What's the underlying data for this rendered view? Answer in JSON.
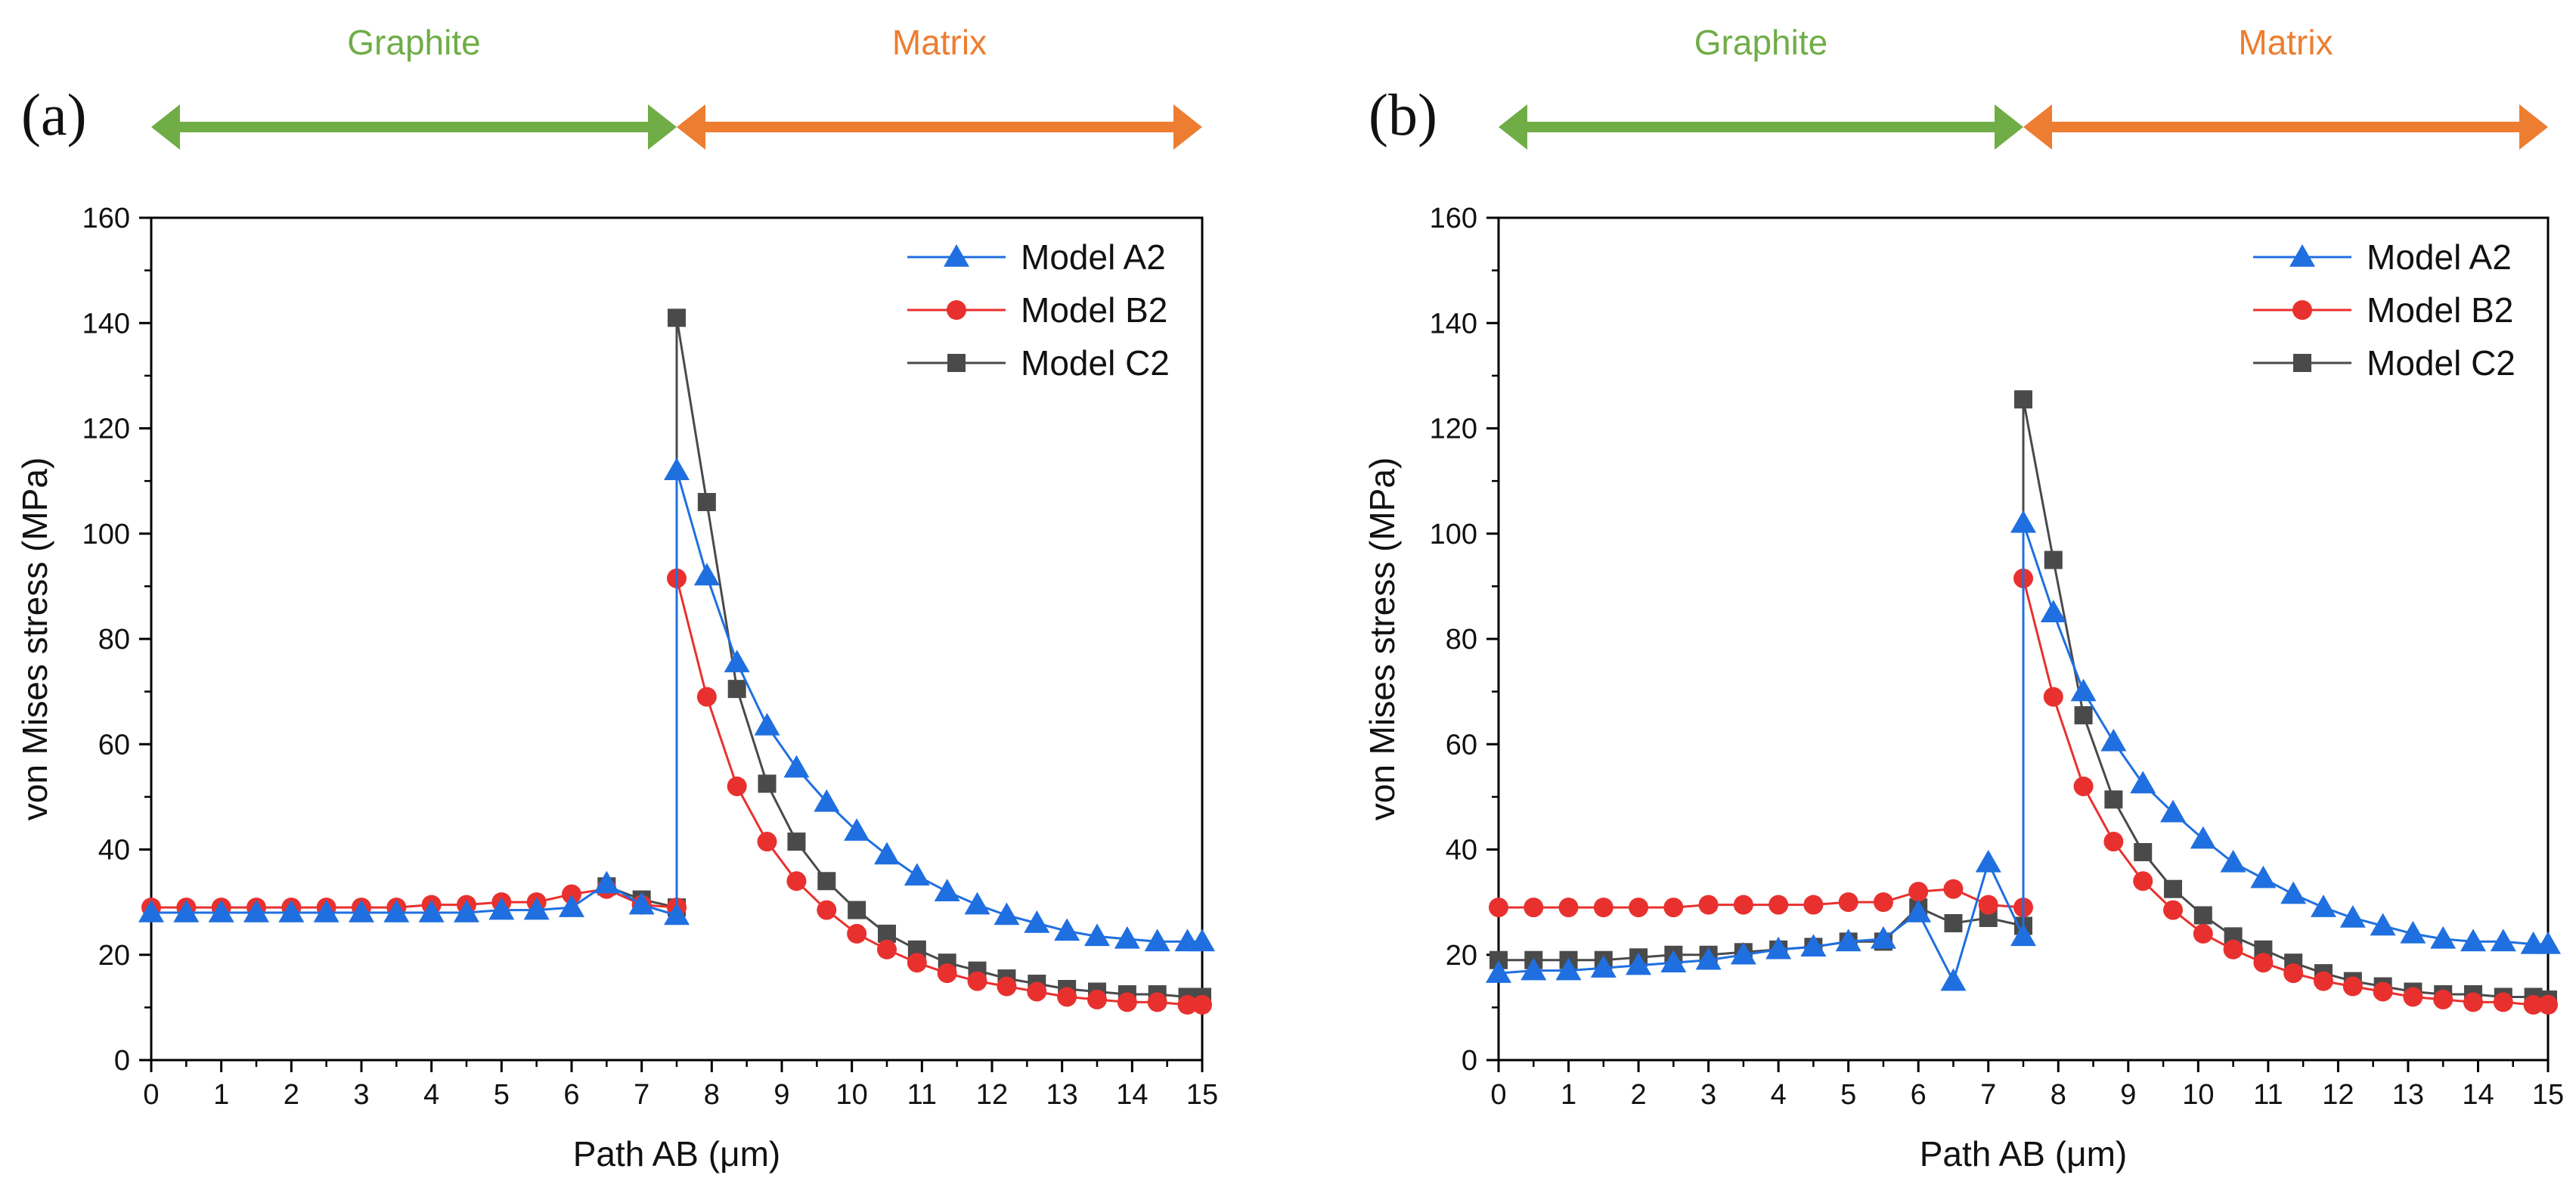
{
  "colors": {
    "graphite": "#70ad47",
    "matrix": "#ed7d31",
    "modelA2": "#1f6fe0",
    "modelB2": "#e8312f",
    "modelC2": "#4a4a4a"
  },
  "chart_data": [
    {
      "type": "line",
      "panel_label": "(a)",
      "region_labels": {
        "graphite": "Graphite",
        "matrix": "Matrix"
      },
      "xlabel": "Path AB (μm)",
      "ylabel": "von Mises stress (MPa)",
      "xlim": [
        0,
        15
      ],
      "ylim": [
        0,
        160
      ],
      "xticks": [
        0,
        1,
        2,
        3,
        4,
        5,
        6,
        7,
        8,
        9,
        10,
        11,
        12,
        13,
        14,
        15
      ],
      "yticks": [
        0,
        20,
        40,
        60,
        80,
        100,
        120,
        140,
        160
      ],
      "legend_position": "top-right",
      "series": [
        {
          "name": "Model A2",
          "marker": "triangle",
          "x": [
            0,
            0.5,
            1,
            1.5,
            2,
            2.5,
            3,
            3.5,
            4,
            4.5,
            5,
            5.5,
            6,
            6.5,
            7,
            7.5,
            7.5,
            7.93,
            8.36,
            8.79,
            9.21,
            9.64,
            10.07,
            10.5,
            10.93,
            11.36,
            11.79,
            12.21,
            12.64,
            13.07,
            13.5,
            13.93,
            14.36,
            14.79,
            15
          ],
          "y": [
            28,
            28,
            28,
            28,
            28,
            28,
            28,
            28,
            28,
            28,
            28.5,
            28.5,
            29,
            33.5,
            29.5,
            27.5,
            112,
            92,
            75.5,
            63.5,
            55.5,
            49,
            43.5,
            39,
            35,
            32,
            29.5,
            27.5,
            26,
            24.5,
            23.5,
            23,
            22.5,
            22.5,
            22.5
          ]
        },
        {
          "name": "Model B2",
          "marker": "circle",
          "x": [
            0,
            0.5,
            1,
            1.5,
            2,
            2.5,
            3,
            3.5,
            4,
            4.5,
            5,
            5.5,
            6,
            6.5,
            7,
            7.5,
            7.5,
            7.93,
            8.36,
            8.79,
            9.21,
            9.64,
            10.07,
            10.5,
            10.93,
            11.36,
            11.79,
            12.21,
            12.64,
            13.07,
            13.5,
            13.93,
            14.36,
            14.79,
            15
          ],
          "y": [
            29,
            29,
            29,
            29,
            29,
            29,
            29,
            29,
            29.5,
            29.5,
            30,
            30,
            31.5,
            32.5,
            29.5,
            29,
            91.5,
            69,
            52,
            41.5,
            34,
            28.5,
            24,
            21,
            18.5,
            16.5,
            15,
            14,
            13,
            12,
            11.5,
            11,
            11,
            10.5,
            10.5
          ]
        },
        {
          "name": "Model C2",
          "marker": "square",
          "x": [
            6.5,
            7,
            7.5,
            7.5,
            7.93,
            8.36,
            8.79,
            9.21,
            9.64,
            10.07,
            10.5,
            10.93,
            11.36,
            11.79,
            12.21,
            12.64,
            13.07,
            13.5,
            13.93,
            14.36,
            14.79,
            15
          ],
          "y": [
            33,
            30.5,
            29,
            141,
            106,
            70.5,
            52.5,
            41.5,
            34,
            28.5,
            24,
            21,
            18.5,
            17,
            15.5,
            14.5,
            13.5,
            13,
            12.5,
            12.5,
            12,
            12
          ]
        }
      ]
    },
    {
      "type": "line",
      "panel_label": "(b)",
      "region_labels": {
        "graphite": "Graphite",
        "matrix": "Matrix"
      },
      "xlabel": "Path AB (μm)",
      "ylabel": "von Mises stress (MPa)",
      "xlim": [
        0,
        15
      ],
      "ylim": [
        0,
        160
      ],
      "xticks": [
        0,
        1,
        2,
        3,
        4,
        5,
        6,
        7,
        8,
        9,
        10,
        11,
        12,
        13,
        14,
        15
      ],
      "yticks": [
        0,
        20,
        40,
        60,
        80,
        100,
        120,
        140,
        160
      ],
      "legend_position": "top-right",
      "series": [
        {
          "name": "Model A2",
          "marker": "triangle",
          "x": [
            0,
            0.5,
            1,
            1.5,
            2,
            2.5,
            3,
            3.5,
            4,
            4.5,
            5,
            5.5,
            6,
            6.5,
            7,
            7.5,
            7.5,
            7.93,
            8.36,
            8.79,
            9.21,
            9.64,
            10.07,
            10.5,
            10.93,
            11.36,
            11.79,
            12.21,
            12.64,
            13.07,
            13.5,
            13.93,
            14.36,
            14.79,
            15
          ],
          "y": [
            16.5,
            17,
            17,
            17.5,
            18,
            18.5,
            19,
            20,
            21,
            21.5,
            22.5,
            23,
            28,
            15,
            37.5,
            23.5,
            102,
            85,
            70,
            60.5,
            52.5,
            47,
            42,
            37.5,
            34.5,
            31.5,
            29,
            27,
            25.5,
            24,
            23,
            22.5,
            22.5,
            22,
            22
          ]
        },
        {
          "name": "Model B2",
          "marker": "circle",
          "x": [
            0,
            0.5,
            1,
            1.5,
            2,
            2.5,
            3,
            3.5,
            4,
            4.5,
            5,
            5.5,
            6,
            6.5,
            7,
            7.5,
            7.5,
            7.93,
            8.36,
            8.79,
            9.21,
            9.64,
            10.07,
            10.5,
            10.93,
            11.36,
            11.79,
            12.21,
            12.64,
            13.07,
            13.5,
            13.93,
            14.36,
            14.79,
            15
          ],
          "y": [
            29,
            29,
            29,
            29,
            29,
            29,
            29.5,
            29.5,
            29.5,
            29.5,
            30,
            30,
            32,
            32.5,
            29.5,
            29,
            91.5,
            69,
            52,
            41.5,
            34,
            28.5,
            24,
            21,
            18.5,
            16.5,
            15,
            14,
            13,
            12,
            11.5,
            11,
            11,
            10.5,
            10.5
          ]
        },
        {
          "name": "Model C2",
          "marker": "square",
          "x": [
            0,
            0.5,
            1,
            1.5,
            2,
            2.5,
            3,
            3.5,
            4,
            4.5,
            5,
            5.5,
            6,
            6.5,
            7,
            7.5,
            7.5,
            7.93,
            8.36,
            8.79,
            9.21,
            9.64,
            10.07,
            10.5,
            10.93,
            11.36,
            11.79,
            12.21,
            12.64,
            13.07,
            13.5,
            13.93,
            14.36,
            14.79,
            15
          ],
          "y": [
            19,
            19,
            19,
            19,
            19.5,
            20,
            20,
            20.5,
            21,
            21.5,
            22.5,
            22.5,
            29,
            26,
            27,
            25.5,
            125.5,
            95,
            65.5,
            49.5,
            39.5,
            32.5,
            27.5,
            23.5,
            21,
            18.5,
            16.5,
            15,
            14,
            13,
            12.5,
            12.5,
            12,
            12,
            11.5
          ]
        }
      ]
    }
  ]
}
